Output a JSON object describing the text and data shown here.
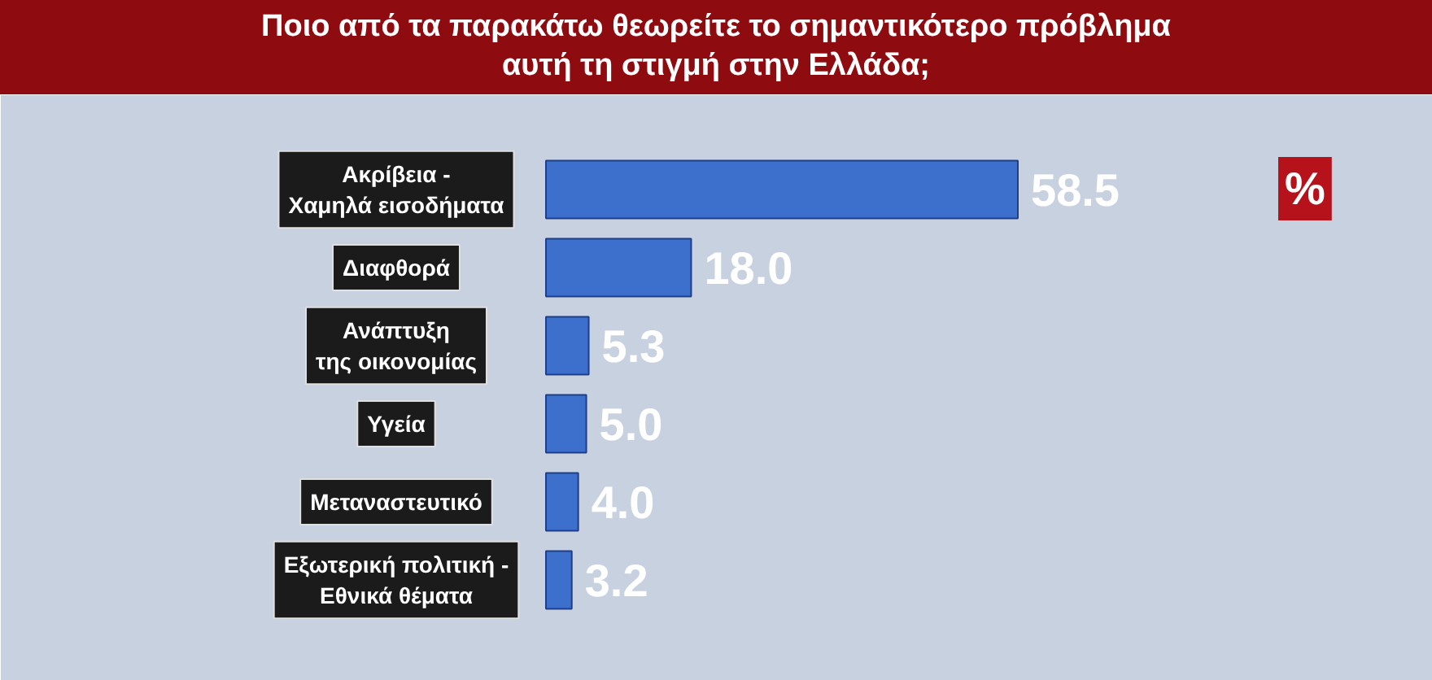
{
  "chart_data": {
    "type": "bar",
    "orientation": "horizontal",
    "title": "Ποιο από τα παρακάτω θεωρείτε το σημαντικότερο πρόβλημα\nαυτή τη στιγμή στην Ελλάδα;",
    "categories": [
      "Ακρίβεια -\nΧαμηλά εισοδήματα",
      "Διαφθορά",
      "Ανάπτυξη\nτης οικονομίας",
      "Υγεία",
      "Μεταναστευτικό",
      "Εξωτερική πολιτική -\nΕθνικά θέματα"
    ],
    "values": [
      58.5,
      18.0,
      5.3,
      5.0,
      4.0,
      3.2
    ],
    "value_labels": [
      "58.5",
      "18.0",
      "5.3",
      "5.0",
      "4.0",
      "3.2"
    ],
    "color": "#3d6fcc",
    "annotations": [
      "%"
    ],
    "grid": false
  }
}
